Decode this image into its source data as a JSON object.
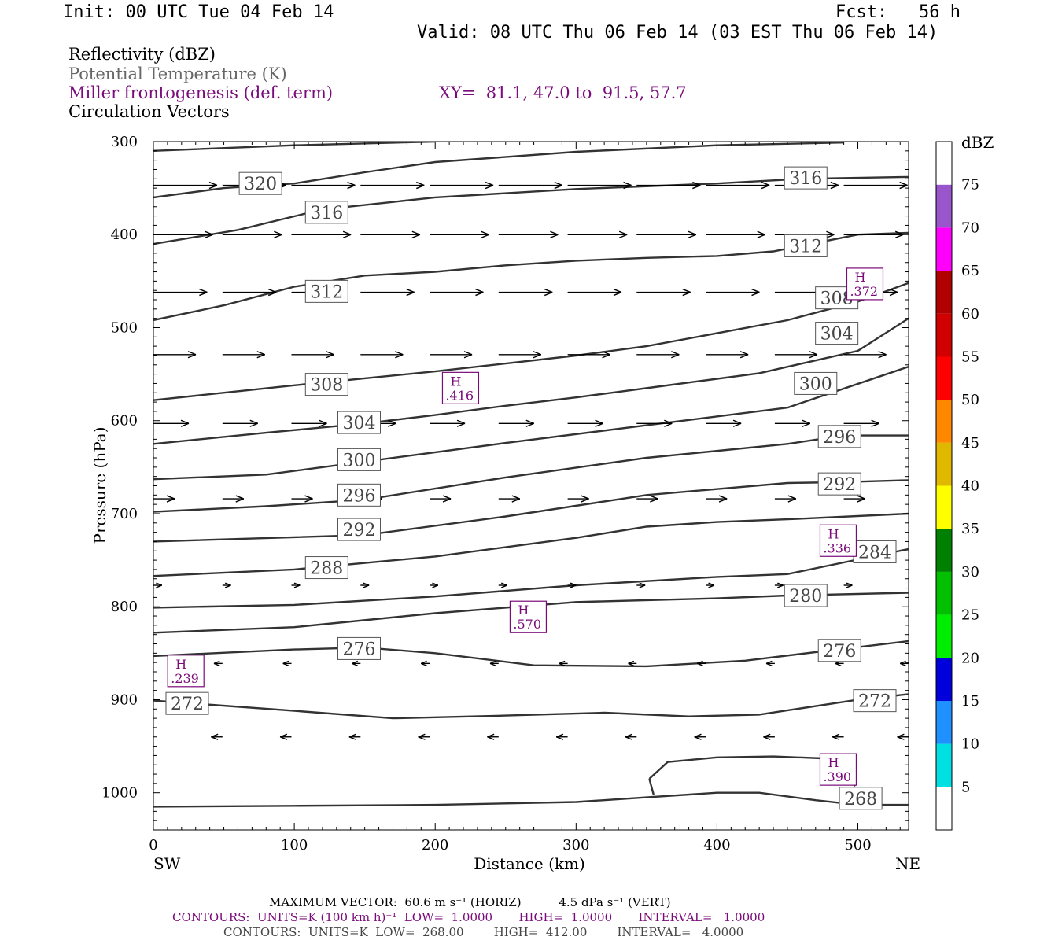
{
  "header": {
    "init": "Init: 00 UTC Tue 04 Feb 14",
    "fcst": "Fcst:   56 h",
    "valid": "Valid: 08 UTC Thu 06 Feb 14 (03 EST Thu 06 Feb 14)"
  },
  "legend": {
    "line1": "Reflectivity (dBZ)",
    "line2": "Potential Temperature (K)",
    "line3": "Miller frontogenesis (def. term)",
    "xy": "XY=  81.1, 47.0 to  91.5, 57.7",
    "line4": "Circulation Vectors"
  },
  "colors": {
    "frontogenesis": "#7b0b7b",
    "theta_line": "#333333",
    "theta_label_text": "#444444",
    "legend_gray": "#666666"
  },
  "chart_data": {
    "type": "cross-section",
    "xlabel": "Distance (km)",
    "ylabel": "Pressure (hPa)",
    "xlim": [
      0,
      536
    ],
    "ylim": [
      1040,
      300
    ],
    "x_ticks": [
      0,
      100,
      200,
      300,
      400,
      500
    ],
    "y_ticks": [
      300,
      400,
      500,
      600,
      700,
      800,
      900,
      1000
    ],
    "left_end_label": "SW",
    "right_end_label": "NE",
    "theta_contours": [
      {
        "value": "320",
        "points": [
          [
            0,
            310
          ],
          [
            100,
            304
          ],
          [
            200,
            300
          ]
        ]
      },
      {
        "value": "320",
        "points": [
          [
            0,
            360
          ],
          [
            50,
            350
          ],
          [
            100,
            345
          ],
          [
            150,
            333
          ],
          [
            200,
            322
          ],
          [
            300,
            311
          ],
          [
            400,
            304
          ],
          [
            490,
            301
          ]
        ]
      },
      {
        "value": "316",
        "points": [
          [
            0,
            410
          ],
          [
            60,
            395
          ],
          [
            120,
            373
          ],
          [
            200,
            360
          ],
          [
            300,
            351
          ],
          [
            400,
            345
          ],
          [
            460,
            340
          ],
          [
            536,
            338
          ]
        ]
      },
      {
        "value": "312",
        "points": [
          [
            0,
            492
          ],
          [
            50,
            476
          ],
          [
            100,
            456
          ],
          [
            150,
            444
          ],
          [
            200,
            440
          ],
          [
            250,
            433
          ],
          [
            300,
            428
          ],
          [
            350,
            425
          ],
          [
            400,
            423
          ],
          [
            440,
            418
          ],
          [
            500,
            400
          ],
          [
            536,
            398
          ]
        ]
      },
      {
        "value": "308",
        "points": [
          [
            0,
            578
          ],
          [
            100,
            562
          ],
          [
            200,
            547
          ],
          [
            300,
            530
          ],
          [
            350,
            520
          ],
          [
            400,
            506
          ],
          [
            450,
            492
          ],
          [
            500,
            472
          ],
          [
            536,
            452
          ]
        ]
      },
      {
        "value": "304",
        "points": [
          [
            0,
            625
          ],
          [
            80,
            613
          ],
          [
            150,
            603
          ],
          [
            200,
            594
          ],
          [
            250,
            584
          ],
          [
            300,
            575
          ],
          [
            360,
            563
          ],
          [
            430,
            549
          ],
          [
            500,
            525
          ],
          [
            536,
            490
          ]
        ]
      },
      {
        "value": "300",
        "points": [
          [
            0,
            663
          ],
          [
            80,
            658
          ],
          [
            150,
            644
          ],
          [
            250,
            624
          ],
          [
            350,
            605
          ],
          [
            450,
            586
          ],
          [
            536,
            542
          ]
        ]
      },
      {
        "value": "296",
        "points": [
          [
            0,
            698
          ],
          [
            80,
            692
          ],
          [
            150,
            685
          ],
          [
            250,
            661
          ],
          [
            350,
            640
          ],
          [
            450,
            625
          ],
          [
            490,
            616
          ],
          [
            536,
            616
          ]
        ]
      },
      {
        "value": "292",
        "points": [
          [
            0,
            730
          ],
          [
            150,
            723
          ],
          [
            250,
            703
          ],
          [
            350,
            680
          ],
          [
            450,
            667
          ],
          [
            490,
            666
          ],
          [
            536,
            664
          ]
        ]
      },
      {
        "value": "288",
        "points": [
          [
            0,
            767
          ],
          [
            100,
            760
          ],
          [
            200,
            746
          ],
          [
            300,
            726
          ],
          [
            350,
            714
          ],
          [
            400,
            709
          ],
          [
            450,
            706
          ],
          [
            536,
            700
          ]
        ]
      },
      {
        "value": "284",
        "points": [
          [
            0,
            801
          ],
          [
            100,
            798
          ],
          [
            200,
            789
          ],
          [
            300,
            777
          ],
          [
            400,
            768
          ],
          [
            450,
            765
          ],
          [
            536,
            738
          ]
        ]
      },
      {
        "value": "280",
        "points": [
          [
            0,
            828
          ],
          [
            100,
            822
          ],
          [
            200,
            807
          ],
          [
            300,
            795
          ],
          [
            400,
            791
          ],
          [
            450,
            788
          ],
          [
            536,
            785
          ]
        ]
      },
      {
        "value": "276",
        "points": [
          [
            0,
            853
          ],
          [
            100,
            846
          ],
          [
            150,
            844
          ],
          [
            200,
            850
          ],
          [
            270,
            863
          ],
          [
            350,
            864
          ],
          [
            420,
            858
          ],
          [
            480,
            847
          ],
          [
            536,
            837
          ]
        ]
      },
      {
        "value": "272",
        "points": [
          [
            0,
            901
          ],
          [
            100,
            912
          ],
          [
            170,
            920
          ],
          [
            250,
            917
          ],
          [
            320,
            914
          ],
          [
            380,
            918
          ],
          [
            430,
            916
          ],
          [
            500,
            900
          ],
          [
            536,
            894
          ]
        ]
      },
      {
        "value": "268",
        "points": [
          [
            0,
            1015
          ],
          [
            100,
            1014
          ],
          [
            200,
            1013
          ],
          [
            300,
            1010
          ],
          [
            350,
            1005
          ],
          [
            400,
            1000
          ],
          [
            430,
            1000
          ],
          [
            470,
            1008
          ],
          [
            500,
            1013
          ],
          [
            536,
            1013
          ]
        ]
      },
      {
        "value": "",
        "points": [
          [
            352,
            985
          ],
          [
            355,
            1002
          ]
        ]
      },
      {
        "value": "",
        "points": [
          [
            352,
            985
          ],
          [
            365,
            967
          ],
          [
            400,
            962
          ],
          [
            440,
            961
          ],
          [
            475,
            963
          ],
          [
            488,
            972
          ],
          [
            498,
            993
          ]
        ]
      }
    ],
    "theta_labels": [
      {
        "value": "320",
        "x": 76,
        "p": 345
      },
      {
        "value": "316",
        "x": 123,
        "p": 376
      },
      {
        "value": "312",
        "x": 123,
        "p": 461
      },
      {
        "value": "308",
        "x": 123,
        "p": 561
      },
      {
        "value": "304",
        "x": 146,
        "p": 602
      },
      {
        "value": "300",
        "x": 146,
        "p": 642
      },
      {
        "value": "296",
        "x": 146,
        "p": 680
      },
      {
        "value": "292",
        "x": 146,
        "p": 717
      },
      {
        "value": "288",
        "x": 123,
        "p": 758
      },
      {
        "value": "276",
        "x": 146,
        "p": 845
      },
      {
        "value": "272",
        "x": 24,
        "p": 904
      },
      {
        "value": "316",
        "x": 463,
        "p": 339
      },
      {
        "value": "312",
        "x": 463,
        "p": 412
      },
      {
        "value": "308",
        "x": 485,
        "p": 468
      },
      {
        "value": "304",
        "x": 485,
        "p": 506
      },
      {
        "value": "300",
        "x": 470,
        "p": 560
      },
      {
        "value": "296",
        "x": 487,
        "p": 617
      },
      {
        "value": "292",
        "x": 487,
        "p": 668
      },
      {
        "value": "284",
        "x": 512,
        "p": 741
      },
      {
        "value": "280",
        "x": 463,
        "p": 788
      },
      {
        "value": "276",
        "x": 487,
        "p": 847
      },
      {
        "value": "272",
        "x": 512,
        "p": 901
      },
      {
        "value": "268",
        "x": 502,
        "p": 1006
      }
    ],
    "frontogenesis_highs": [
      {
        "label": "H",
        "value": ".416",
        "x": 218,
        "p": 565
      },
      {
        "label": "H",
        "value": ".372",
        "x": 505,
        "p": 453
      },
      {
        "label": "H",
        "value": ".336",
        "x": 486,
        "p": 729
      },
      {
        "label": "H",
        "value": ".570",
        "x": 266,
        "p": 811
      },
      {
        "label": "H",
        "value": ".239",
        "x": 23,
        "p": 869
      },
      {
        "label": "H",
        "value": ".390",
        "x": 486,
        "p": 975
      }
    ],
    "vector_rows": [
      {
        "p": 347,
        "dx": 45,
        "dy": 0,
        "y_offset": 0
      },
      {
        "p": 400,
        "dx": 42,
        "dy": 0,
        "y_offset": 0
      },
      {
        "p": 462,
        "dx": 38,
        "dy": 0,
        "y_offset": 0
      },
      {
        "p": 529,
        "dx": 30,
        "dy": 0,
        "y_offset": 0
      },
      {
        "p": 603,
        "dx": 25,
        "dy": 0,
        "y_offset": 0
      },
      {
        "p": 684,
        "dx": 15,
        "dy": 0,
        "y_offset": 0
      },
      {
        "p": 777,
        "dx": 6,
        "dy": 0,
        "y_offset": 0
      },
      {
        "p": 861,
        "dx": -6,
        "dy": 0,
        "y_offset": 0
      },
      {
        "p": 940,
        "dx": -8,
        "dy": 0,
        "y_offset": 0
      }
    ],
    "colorbar": {
      "title": "dBZ",
      "levels": [
        "5",
        "10",
        "15",
        "20",
        "25",
        "30",
        "35",
        "40",
        "45",
        "50",
        "55",
        "60",
        "65",
        "70",
        "75"
      ],
      "colors": [
        "#ffffff",
        "#00e0e0",
        "#1e90ff",
        "#0000dd",
        "#00ee00",
        "#00c000",
        "#008000",
        "#ffff00",
        "#e0b800",
        "#ff8800",
        "#ff0000",
        "#d00000",
        "#b00000",
        "#ff00ff",
        "#9955cc",
        "#ffffff"
      ]
    }
  },
  "footer": {
    "max_vector": "MAXIMUM VECTOR:  60.6 m s⁻¹ (HORIZ)          4.5 dPa s⁻¹ (VERT)",
    "contours1": "CONTOURS:  UNITS=K (100 km h)⁻¹  LOW=  1.0000       HIGH=  1.0000       INTERVAL=   1.0000",
    "contours2": "CONTOURS:  UNITS=K  LOW=  268.00        HIGH=  412.00        INTERVAL=   4.0000"
  }
}
